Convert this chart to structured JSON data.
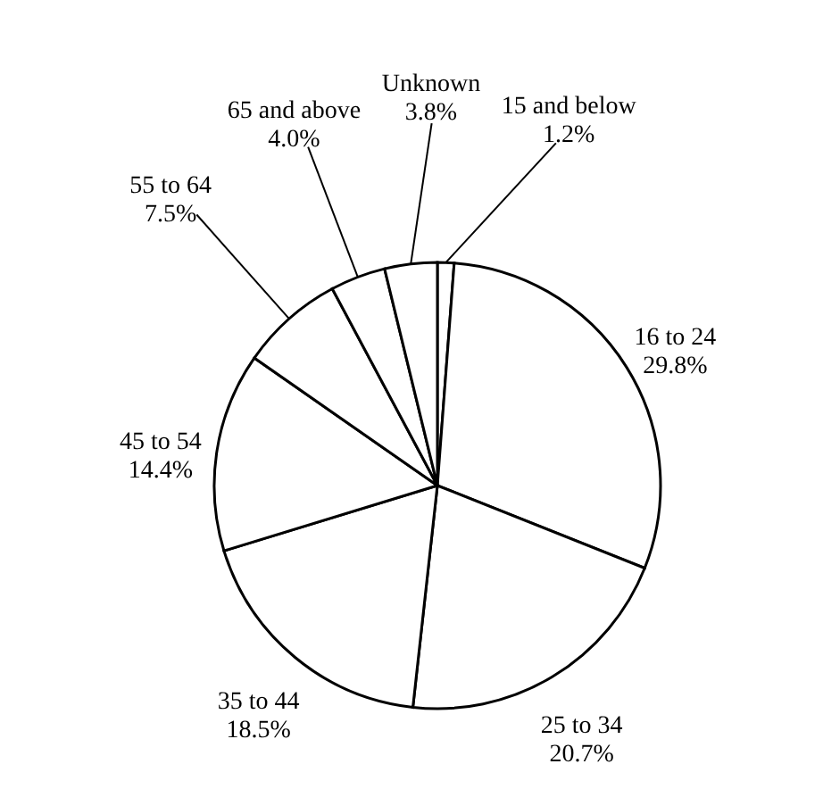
{
  "chart_data": {
    "type": "pie",
    "categories": [
      "15 and below",
      "16 to 24",
      "25 to 34",
      "35 to 44",
      "45 to 54",
      "55 to 64",
      "65 and above",
      "Unknown"
    ],
    "values": [
      1.2,
      29.8,
      20.7,
      18.5,
      14.4,
      7.5,
      4.0,
      3.8
    ],
    "value_labels": [
      "1.2%",
      "29.8%",
      "20.7%",
      "18.5%",
      "14.4%",
      "7.5%",
      "4.0%",
      "3.8%"
    ],
    "colors": [
      "#ffffff",
      "#ffffff",
      "#ffffff",
      "#ffffff",
      "#ffffff",
      "#ffffff",
      "#ffffff",
      "#ffffff"
    ]
  }
}
